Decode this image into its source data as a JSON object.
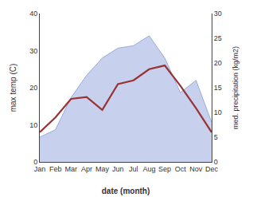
{
  "chart_data": {
    "type": "line",
    "xlabel": "date (month)",
    "ylabel": "max temp (C)",
    "y2label": "med. precipitation (kg/m2)",
    "categories": [
      "Jan",
      "Feb",
      "Mar",
      "Apr",
      "May",
      "Jun",
      "Jul",
      "Aug",
      "Sep",
      "Oct",
      "Nov",
      "Dec"
    ],
    "series": [
      {
        "type": "area",
        "axis": "y2",
        "color": "#99aadd",
        "values": [
          5.0,
          6.5,
          13.0,
          17.5,
          21.0,
          23.0,
          23.5,
          25.5,
          21.0,
          14.0,
          16.5,
          8.0
        ]
      },
      {
        "type": "line",
        "color": "#993333",
        "values": [
          8.0,
          12.0,
          17.0,
          17.5,
          14.0,
          21.0,
          22.0,
          25.0,
          26.0,
          20.5,
          14.5,
          8.0
        ]
      }
    ],
    "ylim": [
      0,
      40
    ],
    "yticks": [
      0,
      10,
      20,
      30,
      40
    ],
    "y2lim": [
      0,
      30
    ],
    "y2ticks": [
      0,
      5,
      10,
      15,
      20,
      25,
      30
    ],
    "grid": false
  }
}
